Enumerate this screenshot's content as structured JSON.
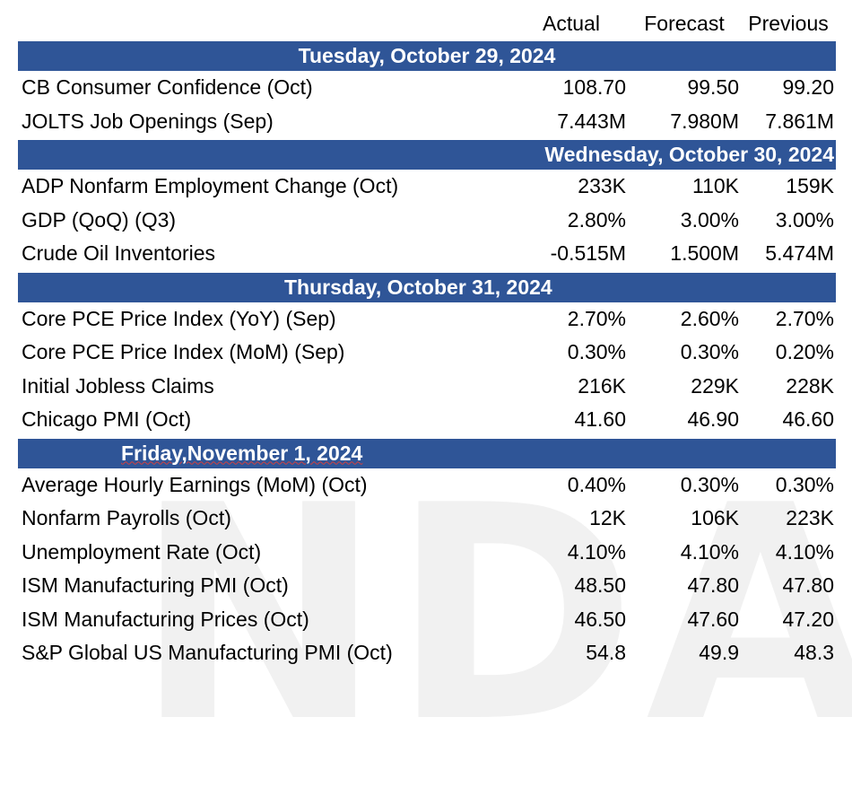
{
  "watermark": "NDA",
  "headers": {
    "actual": "Actual",
    "forecast": "Forecast",
    "previous": "Previous"
  },
  "sections": [
    {
      "date": "Tuesday, October 29, 2024",
      "rows": [
        {
          "name": "CB Consumer Confidence (Oct)",
          "actual": "108.70",
          "forecast": "99.50",
          "previous": "99.20"
        },
        {
          "name": "JOLTS Job Openings (Sep)",
          "actual": "7.443M",
          "forecast": "7.980M",
          "previous": "7.861M"
        }
      ]
    },
    {
      "date": "Wednesday, October 30, 2024",
      "rows": [
        {
          "name": "ADP Nonfarm Employment Change (Oct)",
          "actual": "233K",
          "forecast": "110K",
          "previous": "159K"
        },
        {
          "name": "GDP (QoQ) (Q3)",
          "actual": "2.80%",
          "forecast": "3.00%",
          "previous": "3.00%"
        },
        {
          "name": "Crude Oil Inventories",
          "actual": "-0.515M",
          "forecast": "1.500M",
          "previous": "5.474M"
        }
      ]
    },
    {
      "date": "Thursday, October 31, 2024",
      "rows": [
        {
          "name": "Core PCE Price Index (YoY) (Sep)",
          "actual": "2.70%",
          "forecast": "2.60%",
          "previous": "2.70%"
        },
        {
          "name": "Core PCE Price Index (MoM) (Sep)",
          "actual": "0.30%",
          "forecast": "0.30%",
          "previous": "0.20%"
        },
        {
          "name": "Initial Jobless Claims",
          "actual": "216K",
          "forecast": "229K",
          "previous": "228K"
        },
        {
          "name": "Chicago PMI (Oct)",
          "actual": "41.60",
          "forecast": "46.90",
          "previous": "46.60"
        }
      ]
    },
    {
      "date": "Friday,November 1, 2024",
      "rows": [
        {
          "name": "Average Hourly Earnings (MoM) (Oct)",
          "actual": "0.40%",
          "forecast": "0.30%",
          "previous": "0.30%"
        },
        {
          "name": "Nonfarm Payrolls (Oct)",
          "actual": "12K",
          "forecast": "106K",
          "previous": "223K"
        },
        {
          "name": "Unemployment Rate (Oct)",
          "actual": "4.10%",
          "forecast": "4.10%",
          "previous": "4.10%"
        },
        {
          "name": "ISM Manufacturing PMI (Oct)",
          "actual": "48.50",
          "forecast": "47.80",
          "previous": "47.80"
        },
        {
          "name": "ISM Manufacturing Prices (Oct)",
          "actual": "46.50",
          "forecast": "47.60",
          "previous": "47.20"
        },
        {
          "name": "S&P Global US Manufacturing PMI (Oct)",
          "actual": "54.8",
          "forecast": "49.9",
          "previous": "48.3"
        }
      ]
    }
  ],
  "colors": {
    "header_band": "#2f5597",
    "header_text": "#ffffff",
    "watermark": "#f1f1f1"
  }
}
